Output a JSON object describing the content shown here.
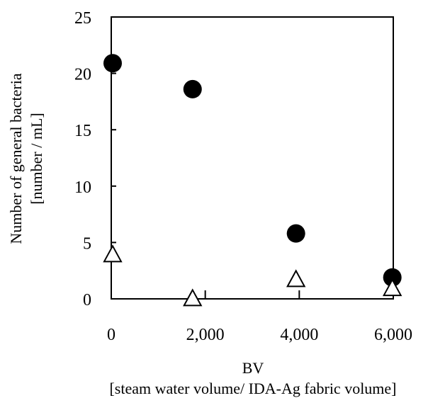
{
  "chart_data": {
    "type": "scatter",
    "title": "",
    "xlabel": "BV",
    "xlabel_sub": "[steam water volume/ IDA-Ag fabric volume]",
    "ylabel": "Number of general bacteria",
    "ylabel_sub": "[number / mL]",
    "xlim": [
      0,
      6000
    ],
    "ylim": [
      0,
      25
    ],
    "x_ticks": [
      {
        "value": 0,
        "label": "0"
      },
      {
        "value": 2000,
        "label": "2,000"
      },
      {
        "value": 4000,
        "label": "4,000"
      },
      {
        "value": 6000,
        "label": "6,000"
      }
    ],
    "y_ticks": [
      {
        "value": 0,
        "label": "0"
      },
      {
        "value": 5,
        "label": "5"
      },
      {
        "value": 10,
        "label": "10"
      },
      {
        "value": 15,
        "label": "15"
      },
      {
        "value": 20,
        "label": "20"
      },
      {
        "value": 25,
        "label": "25"
      }
    ],
    "grid": false,
    "legend": "none",
    "series": [
      {
        "marker": "filled-circle",
        "color": "#000000",
        "points": [
          {
            "x": 30,
            "y": 20.9
          },
          {
            "x": 1730,
            "y": 18.6
          },
          {
            "x": 3930,
            "y": 5.8
          },
          {
            "x": 5980,
            "y": 1.9
          }
        ]
      },
      {
        "marker": "open-triangle",
        "color": "#000000",
        "points": [
          {
            "x": 30,
            "y": 4.0
          },
          {
            "x": 1730,
            "y": 0.1
          },
          {
            "x": 3930,
            "y": 1.8
          },
          {
            "x": 5980,
            "y": 1.0
          }
        ]
      }
    ]
  }
}
